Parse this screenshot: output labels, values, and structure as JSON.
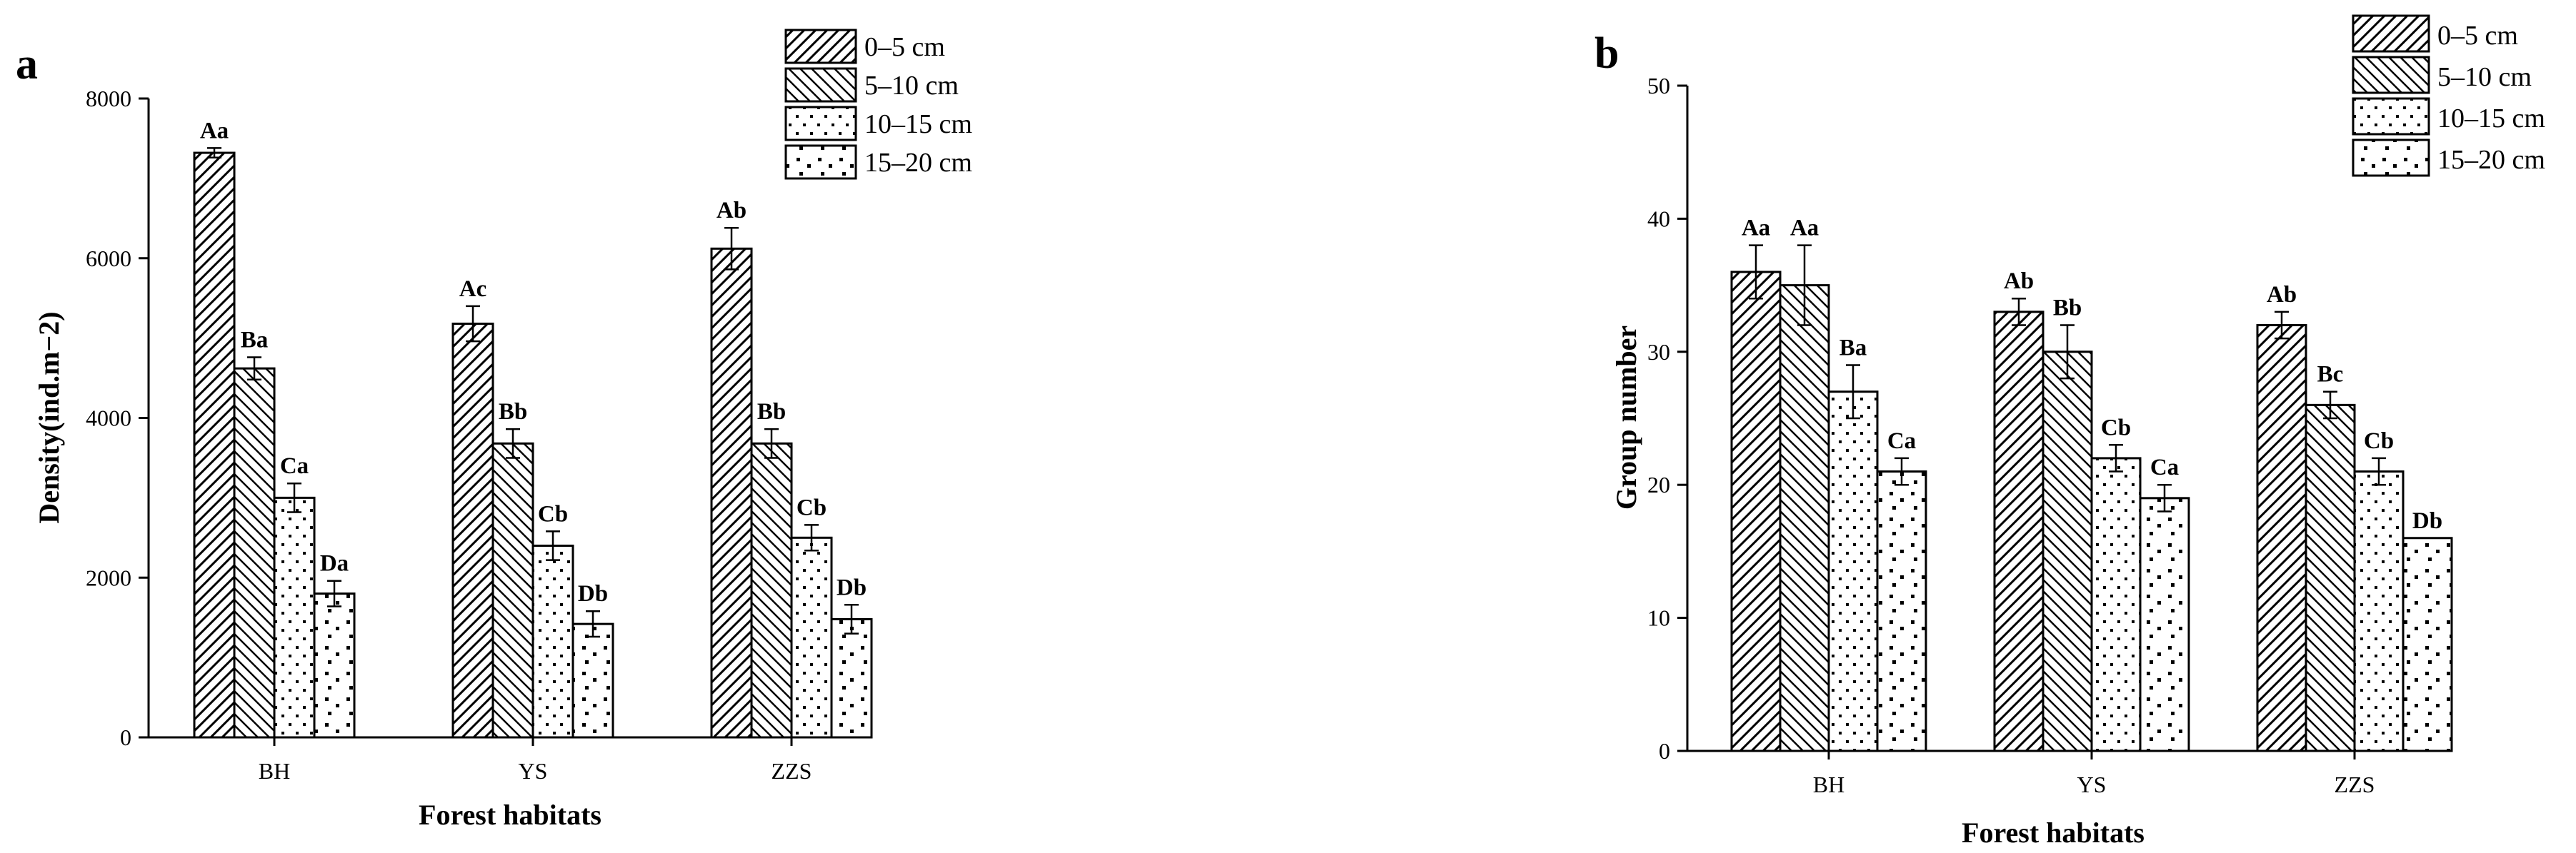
{
  "chart_data": [
    {
      "type": "bar",
      "panel_label": "a",
      "categories": [
        "BH",
        "YS",
        "ZZS"
      ],
      "xlabel": "Forest habitats",
      "ylabel": "Density(ind.m−2)",
      "ylim": [
        0,
        8000
      ],
      "yticks": [
        0,
        2000,
        4000,
        6000,
        8000
      ],
      "grid": false,
      "legend_position": "top-right",
      "series": [
        {
          "name": "0–5 cm",
          "pattern": "hatch-forward",
          "values": [
            7320,
            5180,
            6120
          ],
          "errors": [
            60,
            220,
            260
          ],
          "labels": [
            "Aa",
            "Ac",
            "Ab"
          ]
        },
        {
          "name": "5–10 cm",
          "pattern": "hatch-back",
          "values": [
            4620,
            3680,
            3680
          ],
          "errors": [
            140,
            180,
            180
          ],
          "labels": [
            "Ba",
            "Bb",
            "Bb"
          ]
        },
        {
          "name": "10–15 cm",
          "pattern": "dots",
          "values": [
            3000,
            2400,
            2500
          ],
          "errors": [
            180,
            180,
            160
          ],
          "labels": [
            "Ca",
            "Cb",
            "Cb"
          ]
        },
        {
          "name": "15–20 cm",
          "pattern": "sparse-dots",
          "values": [
            1800,
            1420,
            1480
          ],
          "errors": [
            160,
            160,
            180
          ],
          "labels": [
            "Da",
            "Db",
            "Db"
          ]
        }
      ]
    },
    {
      "type": "bar",
      "panel_label": "b",
      "categories": [
        "BH",
        "YS",
        "ZZS"
      ],
      "xlabel": "Forest habitats",
      "ylabel": "Group number",
      "ylim": [
        0,
        50
      ],
      "yticks": [
        0,
        10,
        20,
        30,
        40,
        50
      ],
      "grid": false,
      "legend_position": "top-right",
      "series": [
        {
          "name": "0–5 cm",
          "pattern": "hatch-forward",
          "values": [
            36,
            33,
            32
          ],
          "errors": [
            2,
            1,
            1
          ],
          "labels": [
            "Aa",
            "Ab",
            "Ab"
          ]
        },
        {
          "name": "5–10 cm",
          "pattern": "hatch-back",
          "values": [
            35,
            30,
            26
          ],
          "errors": [
            3,
            2,
            1
          ],
          "labels": [
            "Aa",
            "Bb",
            "Bc"
          ]
        },
        {
          "name": "10–15 cm",
          "pattern": "dots",
          "values": [
            27,
            22,
            21
          ],
          "errors": [
            2,
            1,
            1
          ],
          "labels": [
            "Ba",
            "Cb",
            "Cb"
          ]
        },
        {
          "name": "15–20 cm",
          "pattern": "sparse-dots",
          "values": [
            21,
            19,
            16
          ],
          "errors": [
            1,
            1,
            0
          ],
          "labels": [
            "Ca",
            "Ca",
            "Db"
          ]
        }
      ]
    }
  ]
}
